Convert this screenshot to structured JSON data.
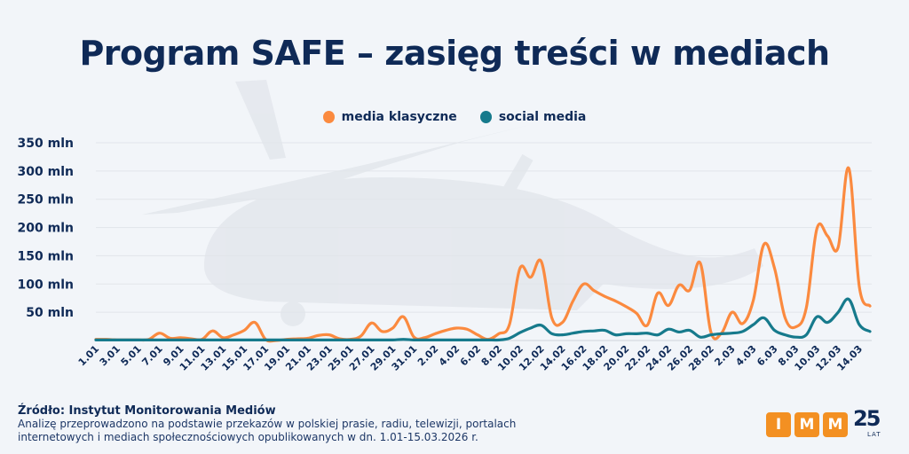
{
  "title": "Program SAFE – zasięg treści w mediach",
  "legend": [
    {
      "label": "media klasyczne",
      "color": "#fb8a3f"
    },
    {
      "label": "social media",
      "color": "#167a8c"
    }
  ],
  "footer": {
    "source": "Źródło: Instytut Monitorowania Mediów",
    "note_line1": "Analizę przeprowadzono na podstawie przekazów w polskiej prasie, radiu, telewizji, portalach",
    "note_line2": "internetowych i mediach społecznościowych opublikowanych w dn. 1.01-15.03.2026 r."
  },
  "logo": {
    "letters": [
      "I",
      "M",
      "M"
    ],
    "years": "25",
    "years_label": "LAT",
    "color": "#f39022"
  },
  "chart_data": {
    "type": "line",
    "title": "Program SAFE – zasięg treści w mediach",
    "xlabel": "",
    "ylabel": "",
    "ylim": [
      0,
      350
    ],
    "yticks": [
      50,
      100,
      150,
      200,
      250,
      300,
      350
    ],
    "ytick_labels": [
      "50 mln",
      "100 mln",
      "150 mln",
      "200 mln",
      "250 mln",
      "300 mln",
      "350 mln"
    ],
    "grid": true,
    "legend_position": "top-center",
    "x": [
      "1.01",
      "2.01",
      "3.01",
      "4.01",
      "5.01",
      "6.01",
      "7.01",
      "8.01",
      "9.01",
      "10.01",
      "11.01",
      "12.01",
      "13.01",
      "14.01",
      "15.01",
      "16.01",
      "17.01",
      "18.01",
      "19.01",
      "20.01",
      "21.01",
      "22.01",
      "23.01",
      "24.01",
      "25.01",
      "26.01",
      "27.01",
      "28.01",
      "29.01",
      "30.01",
      "31.01",
      "1.02",
      "2.02",
      "3.02",
      "4.02",
      "5.02",
      "6.02",
      "7.02",
      "8.02",
      "9.02",
      "10.02",
      "11.02",
      "12.02",
      "13.02",
      "14.02",
      "15.02",
      "16.02",
      "17.02",
      "18.02",
      "19.02",
      "20.02",
      "21.02",
      "22.02",
      "23.02",
      "24.02",
      "25.02",
      "26.02",
      "27.02",
      "28.02",
      "1.03",
      "2.03",
      "3.03",
      "4.03",
      "5.03",
      "6.03",
      "7.03",
      "8.03",
      "9.03",
      "10.03",
      "11.03",
      "12.03",
      "13.03",
      "14.03",
      "15.03"
    ],
    "xtick_labels": [
      "1.01",
      "3.01",
      "5.01",
      "7.01",
      "9.01",
      "11.01",
      "13.01",
      "15.01",
      "17.01",
      "19.01",
      "21.01",
      "23.01",
      "25.01",
      "27.01",
      "29.01",
      "31.01",
      "2.02",
      "4.02",
      "6.02",
      "8.02",
      "10.02",
      "12.02",
      "14.02",
      "16.02",
      "18.02",
      "20.02",
      "22.02",
      "24.02",
      "26.02",
      "28.02",
      "2.03",
      "4.03",
      "6.03",
      "8.03",
      "10.03",
      "12.03",
      "14.03"
    ],
    "series": [
      {
        "name": "media klasyczne",
        "color": "#fb8a3f",
        "values": [
          2,
          2,
          1,
          1,
          1,
          2,
          13,
          4,
          5,
          3,
          2,
          17,
          5,
          10,
          18,
          32,
          2,
          0,
          2,
          3,
          4,
          9,
          10,
          3,
          2,
          8,
          31,
          16,
          22,
          42,
          6,
          5,
          12,
          18,
          22,
          20,
          10,
          2,
          12,
          28,
          128,
          112,
          140,
          40,
          32,
          70,
          100,
          88,
          78,
          70,
          60,
          48,
          27,
          84,
          62,
          98,
          89,
          137,
          15,
          13,
          50,
          30,
          71,
          170,
          128,
          40,
          24,
          58,
          198,
          185,
          165,
          305,
          95,
          61
        ],
        "display_note": "values approximated"
      },
      {
        "name": "social media",
        "color": "#167a8c",
        "values": [
          1,
          1,
          1,
          1,
          1,
          1,
          1,
          1,
          1,
          1,
          1,
          1,
          1,
          1,
          1,
          1,
          1,
          1,
          1,
          1,
          1,
          1,
          1,
          1,
          1,
          1,
          1,
          1,
          1,
          2,
          1,
          1,
          1,
          1,
          1,
          1,
          1,
          1,
          1,
          4,
          14,
          22,
          27,
          12,
          10,
          13,
          16,
          17,
          18,
          10,
          12,
          12,
          13,
          10,
          20,
          15,
          18,
          6,
          10,
          12,
          13,
          16,
          28,
          40,
          18,
          10,
          6,
          10,
          42,
          32,
          50,
          73,
          28,
          16
        ]
      }
    ]
  }
}
